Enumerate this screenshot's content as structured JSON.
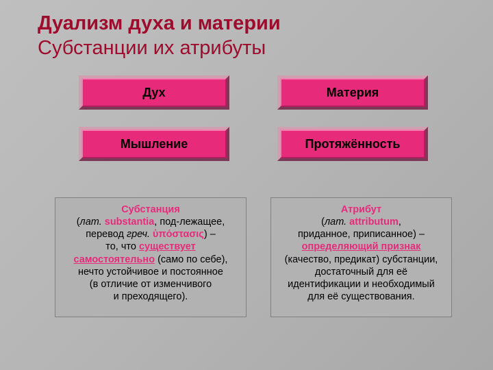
{
  "titles": {
    "line1": "Дуализм духа и материи",
    "line2": "Субстанции их атрибуты"
  },
  "boxes": {
    "b1": "Дух",
    "b2": "Материя",
    "b3": "Мышление",
    "b4": "Протяжённость"
  },
  "def1": {
    "term": "Субстанция",
    "lat_prefix": "лат.",
    "lat_word": "substantia",
    "line2_rest": ", под-лежащее,",
    "line3a": "перевод ",
    "line3_ital": "греч.",
    "line3_greek": " ὑπόστασις",
    "line3_end": ") –",
    "line4a": "то, что ",
    "line4_u": "существует",
    "line5_u": "самостоятельно",
    "line5_rest": " (само по себе),",
    "line6": "нечто устойчивое и постоянное",
    "line7": "(в отличие от изменчивого",
    "line8": "и преходящего)."
  },
  "def2": {
    "term": "Атрибут",
    "lat_prefix": "лат.",
    "lat_word": "attributum",
    "line2_end": ",",
    "line3": "приданное, приписанное) –",
    "line4_u": "определяющий признак",
    "line5": "(качество, предикат) субстанции,",
    "line6": "достаточный для её",
    "line7": "идентификации и необходимый",
    "line8": "для её существования."
  },
  "style": {
    "bg_gradient_from": "#bfbfbf",
    "bg_gradient_to": "#a8a8a8",
    "title_color": "#9e0b2c",
    "title_fontsize_pt": 22,
    "box_fill": "#e82a7a",
    "box_bevel_light": "#d0a0b0",
    "box_bevel_dark": "#7a3a55",
    "box_inner_light": "#f080b0",
    "box_inner_dark": "#b02060",
    "box_text_color": "#000000",
    "box_fontsize_pt": 14,
    "def_bg": "#b2b2b2",
    "def_border": "#808080",
    "def_text_color": "#000000",
    "def_fontsize_pt": 11,
    "term_color": "#e82a7a"
  }
}
